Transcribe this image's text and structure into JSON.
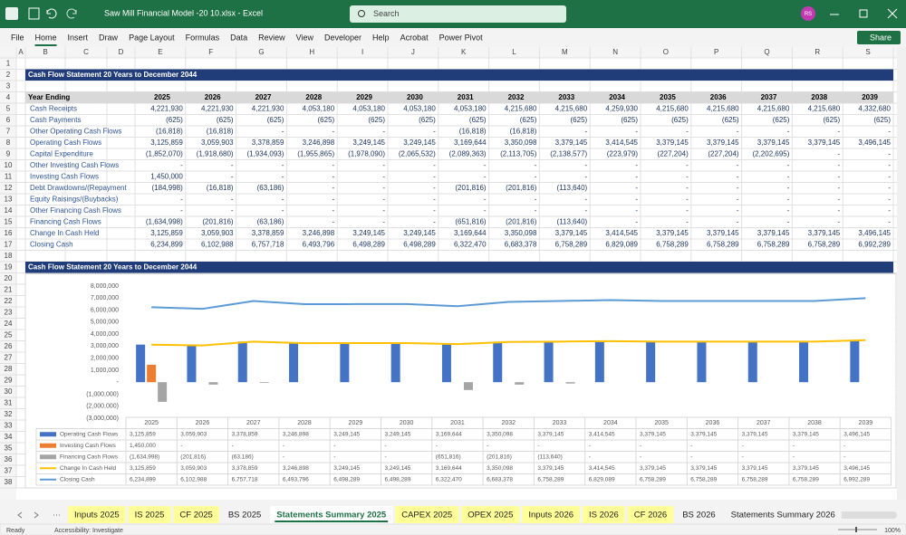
{
  "window": {
    "title": "Saw Mill Financial Model -20 10.xlsx  -  Excel",
    "search": "Search",
    "user": "RS"
  },
  "ribbon": {
    "tabs": [
      "File",
      "Home",
      "Insert",
      "Draw",
      "Page Layout",
      "Formulas",
      "Data",
      "Review",
      "View",
      "Developer",
      "Help",
      "Acrobat",
      "Power Pivot"
    ],
    "active": 1,
    "share": "Share"
  },
  "columns": [
    "A",
    "B",
    "C",
    "D",
    "E",
    "F",
    "G",
    "H",
    "I",
    "J",
    "K",
    "L",
    "M",
    "N",
    "O",
    "P",
    "Q",
    "R",
    "S"
  ],
  "row_numbers": [
    1,
    2,
    3,
    4,
    5,
    6,
    7,
    8,
    9,
    10,
    11,
    12,
    13,
    14,
    15,
    16,
    17,
    18,
    19,
    20,
    21,
    22,
    23,
    24,
    25,
    26,
    27,
    28,
    29,
    30,
    31,
    32,
    33,
    34,
    35,
    36,
    37,
    38
  ],
  "sheet": {
    "title": "Cash Flow Statement 20 Years to December 2044",
    "header": "Year Ending",
    "years": [
      "2025",
      "2026",
      "2027",
      "2028",
      "2029",
      "2030",
      "2031",
      "2032",
      "2033",
      "2034",
      "2035",
      "2036",
      "2037",
      "2038",
      "2039"
    ],
    "rows": [
      {
        "label": "Cash Receipts",
        "cells": [
          "4,221,930",
          "4,221,930",
          "4,221,930",
          "4,053,180",
          "4,053,180",
          "4,053,180",
          "4,053,180",
          "4,215,680",
          "4,215,680",
          "4,259,930",
          "4,215,680",
          "4,215,680",
          "4,215,680",
          "4,215,680",
          "4,332,680"
        ]
      },
      {
        "label": "Cash Payments",
        "cells": [
          "(625)",
          "(625)",
          "(625)",
          "(625)",
          "(625)",
          "(625)",
          "(625)",
          "(625)",
          "(625)",
          "(625)",
          "(625)",
          "(625)",
          "(625)",
          "(625)",
          "(625)"
        ]
      },
      {
        "label": "Other Operating Cash Flows",
        "cells": [
          "(16,818)",
          "(16,818)",
          "-",
          "-",
          "-",
          "-",
          "(16,818)",
          "(16,818)",
          "-",
          "-",
          "-",
          "-",
          "-",
          "-",
          "-"
        ]
      },
      {
        "label": "Operating Cash Flows",
        "cells": [
          "3,125,859",
          "3,059,903",
          "3,378,859",
          "3,246,898",
          "3,249,145",
          "3,249,145",
          "3,169,644",
          "3,350,098",
          "3,379,145",
          "3,414,545",
          "3,379,145",
          "3,379,145",
          "3,379,145",
          "3,379,145",
          "3,496,145"
        ]
      },
      {
        "label": "Capital Expenditure",
        "cells": [
          "(1,852,070)",
          "(1,918,680)",
          "(1,934,093)",
          "(1,955,865)",
          "(1,978,090)",
          "(2,065,532)",
          "(2,089,363)",
          "(2,113,705)",
          "(2,138,577)",
          "(223,979)",
          "(227,204)",
          "(227,204)",
          "(2,202,695)",
          "-",
          "-"
        ]
      },
      {
        "label": "Other Investing Cash Flows",
        "cells": [
          "-",
          "-",
          "-",
          "-",
          "-",
          "-",
          "-",
          "-",
          "-",
          "-",
          "-",
          "-",
          "-",
          "-",
          "-"
        ]
      },
      {
        "label": "Investing Cash Flows",
        "cells": [
          "1,450,000",
          "-",
          "-",
          "-",
          "-",
          "-",
          "-",
          "-",
          "-",
          "-",
          "-",
          "-",
          "-",
          "-",
          "-"
        ]
      },
      {
        "label": "Debt Drawdowns/(Repayment",
        "cells": [
          "(184,998)",
          "(16,818)",
          "(63,186)",
          "-",
          "-",
          "-",
          "(201,816)",
          "(201,816)",
          "(113,640)",
          "-",
          "-",
          "-",
          "-",
          "-",
          "-"
        ]
      },
      {
        "label": "Equity Raisings/(Buybacks)",
        "cells": [
          "-",
          "-",
          "-",
          "-",
          "-",
          "-",
          "-",
          "-",
          "-",
          "-",
          "-",
          "-",
          "-",
          "-",
          "-"
        ]
      },
      {
        "label": "Other Financing Cash Flows",
        "cells": [
          "-",
          "-",
          "-",
          "-",
          "-",
          "-",
          "-",
          "-",
          "-",
          "-",
          "-",
          "-",
          "-",
          "-",
          "-"
        ]
      },
      {
        "label": "Financing Cash Flows",
        "cells": [
          "(1,634,998)",
          "(201,816)",
          "(63,186)",
          "-",
          "-",
          "-",
          "(651,816)",
          "(201,816)",
          "(113,640)",
          "-",
          "-",
          "-",
          "-",
          "-",
          "-"
        ]
      },
      {
        "label": "Change In Cash Held",
        "cells": [
          "3,125,859",
          "3,059,903",
          "3,378,859",
          "3,246,898",
          "3,249,145",
          "3,249,145",
          "3,169,644",
          "3,350,098",
          "3,379,145",
          "3,414,545",
          "3,379,145",
          "3,379,145",
          "3,379,145",
          "3,379,145",
          "3,496,145"
        ]
      },
      {
        "label": "Closing Cash",
        "cells": [
          "6,234,899",
          "6,102,988",
          "6,757,718",
          "6,493,796",
          "6,498,289",
          "6,498,289",
          "6,322,470",
          "6,683,378",
          "6,758,289",
          "6,829,089",
          "6,758,289",
          "6,758,289",
          "6,758,289",
          "6,758,289",
          "6,992,289"
        ]
      }
    ],
    "chart_title": "Cash Flow Statement 20 Years to December 2044"
  },
  "chart_data": {
    "type": "combo",
    "categories": [
      "2025",
      "2026",
      "2027",
      "2028",
      "2029",
      "2030",
      "2031",
      "2032",
      "2033",
      "2034",
      "2035",
      "2036",
      "2037",
      "2038",
      "2039"
    ],
    "ylim": [
      -3000000,
      8000000
    ],
    "yticks": [
      {
        "value": -3000000,
        "label": "(3,000,000)"
      },
      {
        "value": -2000000,
        "label": "(2,000,000)"
      },
      {
        "value": -1000000,
        "label": "(1,000,000)"
      },
      {
        "value": 0,
        "label": "-"
      },
      {
        "value": 1000000,
        "label": "1,000,000"
      },
      {
        "value": 2000000,
        "label": "2,000,000"
      },
      {
        "value": 3000000,
        "label": "3,000,000"
      },
      {
        "value": 4000000,
        "label": "4,000,000"
      },
      {
        "value": 5000000,
        "label": "5,000,000"
      },
      {
        "value": 6000000,
        "label": "6,000,000"
      },
      {
        "value": 7000000,
        "label": "7,000,000"
      },
      {
        "value": 8000000,
        "label": "8,000,000"
      }
    ],
    "grid": false,
    "series": [
      {
        "name": "Operating Cash Flows",
        "type": "bar",
        "color": "#4472c4",
        "values": [
          3125859,
          3059903,
          3378859,
          3246898,
          3249145,
          3249145,
          3169644,
          3350098,
          3379145,
          3414545,
          3379145,
          3379145,
          3379145,
          3379145,
          3496145
        ],
        "value_labels": [
          "3,125,859",
          "3,059,903",
          "3,378,859",
          "3,246,898",
          "3,249,145",
          "3,249,145",
          "3,169,644",
          "3,350,098",
          "3,379,145",
          "3,414,545",
          "3,379,145",
          "3,379,145",
          "3,379,145",
          "3,379,145",
          "3,496,145"
        ]
      },
      {
        "name": "Investing Cash Flows",
        "type": "bar",
        "color": "#ed7d31",
        "values": [
          1450000,
          0,
          0,
          0,
          0,
          0,
          0,
          0,
          0,
          0,
          0,
          0,
          0,
          0,
          0
        ],
        "value_labels": [
          "1,450,000",
          "-",
          "-",
          "-",
          "-",
          "-",
          "-",
          "-",
          "-",
          "-",
          "-",
          "-",
          "-",
          "-",
          "-"
        ]
      },
      {
        "name": "Financing Cash Flows",
        "type": "bar",
        "color": "#a5a5a5",
        "values": [
          -1634998,
          -201816,
          -63186,
          0,
          0,
          0,
          -651816,
          -201816,
          -113640,
          0,
          0,
          0,
          0,
          0,
          0
        ],
        "value_labels": [
          "(1,634,998)",
          "(201,816)",
          "(63,186)",
          "-",
          "-",
          "-",
          "(651,816)",
          "(201,816)",
          "(113,640)",
          "-",
          "-",
          "-",
          "-",
          "-",
          "-"
        ]
      },
      {
        "name": "Change In Cash Held",
        "type": "line",
        "color": "#ffc000",
        "values": [
          3125859,
          3059903,
          3378859,
          3246898,
          3249145,
          3249145,
          3169644,
          3350098,
          3379145,
          3414545,
          3379145,
          3379145,
          3379145,
          3379145,
          3496145
        ],
        "value_labels": [
          "3,125,859",
          "3,059,903",
          "3,378,859",
          "3,246,898",
          "3,249,145",
          "3,249,145",
          "3,169,644",
          "3,350,098",
          "3,379,145",
          "3,414,545",
          "3,379,145",
          "3,379,145",
          "3,379,145",
          "3,379,145",
          "3,496,145"
        ]
      },
      {
        "name": "Closing Cash",
        "type": "line",
        "color": "#5b9bd5",
        "values": [
          6234899,
          6102988,
          6757718,
          6493796,
          6498289,
          6498289,
          6322470,
          6683378,
          6758289,
          6829089,
          6758289,
          6758289,
          6758289,
          6758289,
          6992289
        ],
        "value_labels": [
          "6,234,899",
          "6,102,988",
          "6,757,718",
          "6,493,796",
          "6,498,289",
          "6,498,289",
          "6,322,470",
          "6,683,378",
          "6,758,289",
          "6,829,089",
          "6,758,289",
          "6,758,289",
          "6,758,289",
          "6,758,289",
          "6,992,289"
        ]
      }
    ]
  },
  "sheet_tabs": [
    {
      "name": "Inputs 2025",
      "color": "#ffff99"
    },
    {
      "name": "IS 2025",
      "color": "#ffff99"
    },
    {
      "name": "CF 2025",
      "color": "#ffff99"
    },
    {
      "name": "BS 2025",
      "color": "#f3f3f3"
    },
    {
      "name": "Statements Summary 2025",
      "color": "#ffffff"
    },
    {
      "name": "CAPEX 2025",
      "color": "#ffff99"
    },
    {
      "name": "OPEX 2025",
      "color": "#ffff99"
    },
    {
      "name": "Inputs 2026",
      "color": "#ffff99"
    },
    {
      "name": "IS 2026",
      "color": "#ffff99"
    },
    {
      "name": "CF 2026",
      "color": "#ffff99"
    },
    {
      "name": "BS 2026",
      "color": "#f3f3f3"
    },
    {
      "name": "Statements Summary 2026",
      "color": "#f3f3f3"
    }
  ],
  "active_tab": 4,
  "status": {
    "ready": "Ready",
    "accessibility": "Accessibility: Investigate",
    "zoom": "100%"
  }
}
